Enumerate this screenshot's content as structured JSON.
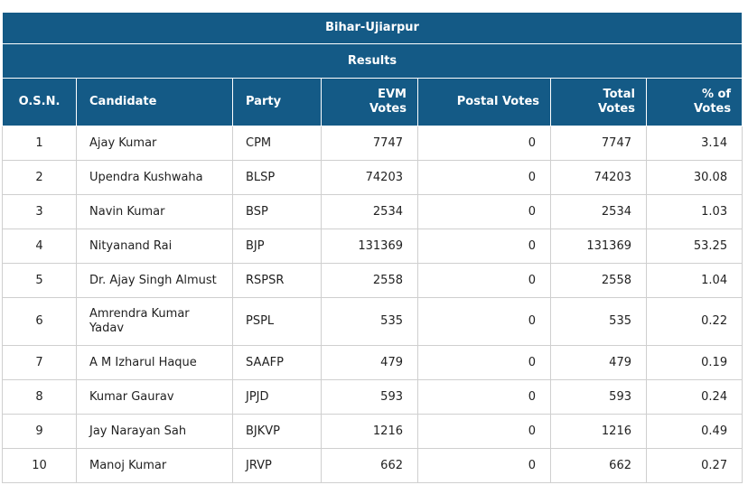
{
  "header": {
    "title": "Bihar-Ujiarpur",
    "subtitle": "Results"
  },
  "columns": {
    "osn": "O.S.N.",
    "candidate": "Candidate",
    "party": "Party",
    "evm_1": "EVM",
    "evm_2": "Votes",
    "postal": "Postal Votes",
    "total_1": "Total",
    "total_2": "Votes",
    "pct_1": "% of",
    "pct_2": "Votes"
  },
  "rows": [
    {
      "osn": "1",
      "candidate": "Ajay Kumar",
      "party": "CPM",
      "evm": "7747",
      "postal": "0",
      "total": "7747",
      "pct": "3.14"
    },
    {
      "osn": "2",
      "candidate": "Upendra Kushwaha",
      "party": "BLSP",
      "evm": "74203",
      "postal": "0",
      "total": "74203",
      "pct": "30.08"
    },
    {
      "osn": "3",
      "candidate": "Navin Kumar",
      "party": "BSP",
      "evm": "2534",
      "postal": "0",
      "total": "2534",
      "pct": "1.03"
    },
    {
      "osn": "4",
      "candidate": "Nityanand Rai",
      "party": "BJP",
      "evm": "131369",
      "postal": "0",
      "total": "131369",
      "pct": "53.25"
    },
    {
      "osn": "5",
      "candidate": "Dr. Ajay Singh Almust",
      "party": "RSPSR",
      "evm": "2558",
      "postal": "0",
      "total": "2558",
      "pct": "1.04"
    },
    {
      "osn": "6",
      "candidate": "Amrendra Kumar Yadav",
      "party": "PSPL",
      "evm": "535",
      "postal": "0",
      "total": "535",
      "pct": "0.22"
    },
    {
      "osn": "7",
      "candidate": "A M Izharul Haque",
      "party": "SAAFP",
      "evm": "479",
      "postal": "0",
      "total": "479",
      "pct": "0.19"
    },
    {
      "osn": "8",
      "candidate": "Kumar Gaurav",
      "party": "JPJD",
      "evm": "593",
      "postal": "0",
      "total": "593",
      "pct": "0.24"
    },
    {
      "osn": "9",
      "candidate": "Jay Narayan Sah",
      "party": "BJKVP",
      "evm": "1216",
      "postal": "0",
      "total": "1216",
      "pct": "0.49"
    },
    {
      "osn": "10",
      "candidate": "Manoj Kumar",
      "party": "JRVP",
      "evm": "662",
      "postal": "0",
      "total": "662",
      "pct": "0.27"
    }
  ]
}
